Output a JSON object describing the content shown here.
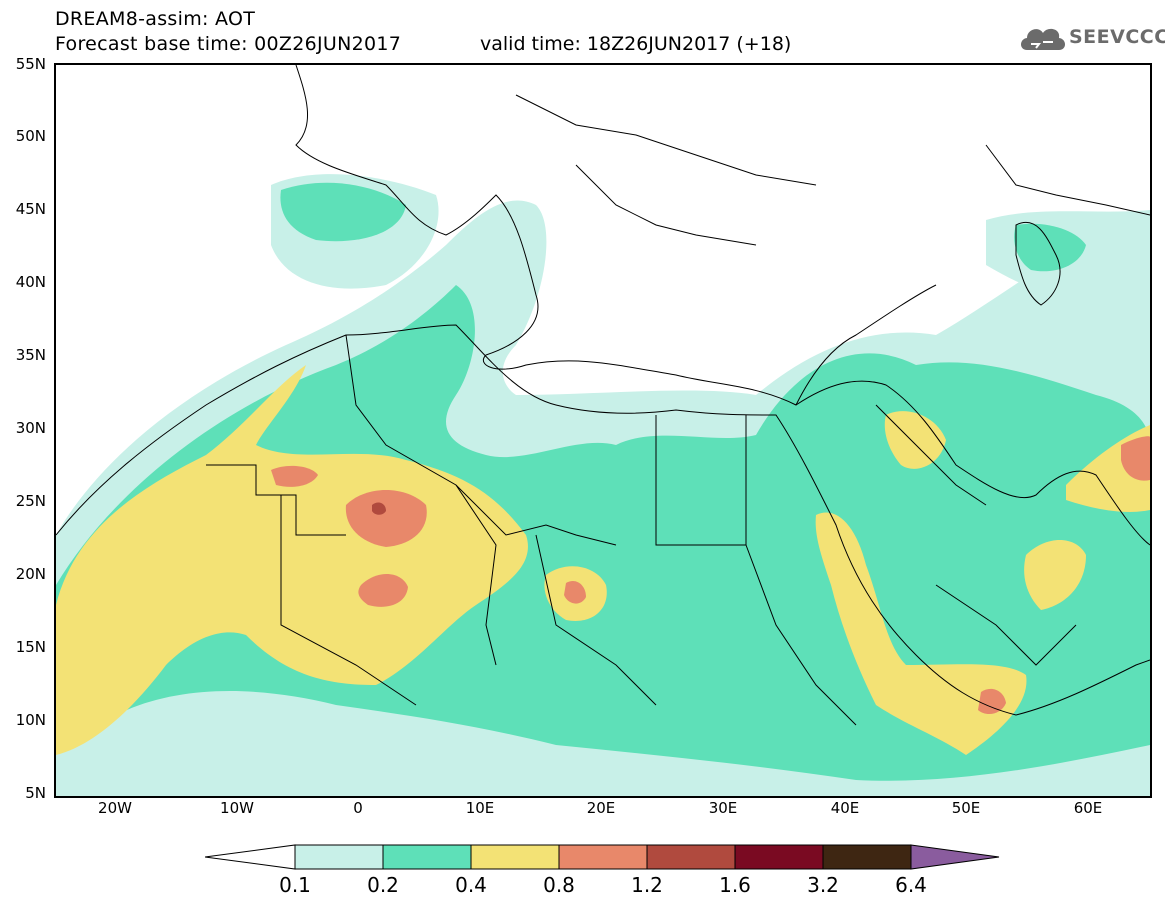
{
  "header": {
    "title": "DREAM8-assim: AOT",
    "base_time": "Forecast base time: 00Z26JUN2017",
    "valid_time": "valid time: 18Z26JUN2017 (+18)"
  },
  "logo": {
    "text": "SEEVCCC",
    "icon": "cloud-icon"
  },
  "map": {
    "lat_labels": [
      "55N",
      "50N",
      "45N",
      "40N",
      "35N",
      "30N",
      "25N",
      "20N",
      "15N",
      "10N",
      "5N"
    ],
    "lon_labels": [
      "20W",
      "10W",
      "0",
      "10E",
      "20E",
      "30E",
      "40E",
      "50E",
      "60E"
    ]
  },
  "legend": {
    "levels": [
      "0.1",
      "0.2",
      "0.4",
      "0.8",
      "1.2",
      "1.6",
      "3.2",
      "6.4"
    ],
    "colors": [
      "#c8f0e8",
      "#5ee0b8",
      "#f3e275",
      "#e8886a",
      "#b04a3e",
      "#7a0a22",
      "#3e2612",
      "#8a5c9e"
    ],
    "low_color": "#ffffff"
  }
}
